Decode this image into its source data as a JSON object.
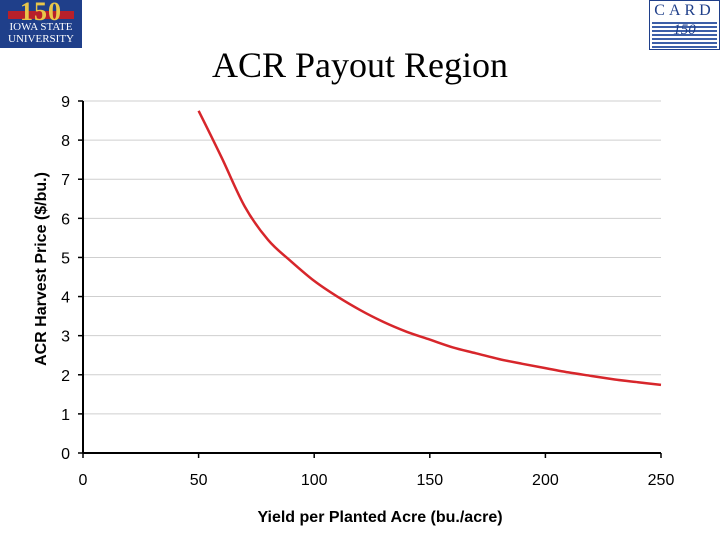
{
  "header": {
    "left_logo": {
      "number": "150",
      "line1": "IOWA STATE",
      "line2": "UNIVERSITY"
    },
    "right_logo": {
      "title": "CARD",
      "number": "150"
    }
  },
  "slide_title": "ACR Payout Region",
  "chart_data": {
    "type": "line",
    "title": "ACR Payout Region",
    "xlabel": "Yield per Planted Acre (bu./acre)",
    "ylabel": "ACR Harvest Price ($/bu.)",
    "xlim": [
      0,
      250
    ],
    "ylim": [
      0,
      9
    ],
    "xticks": [
      0,
      50,
      100,
      150,
      200,
      250
    ],
    "yticks": [
      0,
      1,
      2,
      3,
      4,
      5,
      6,
      7,
      8,
      9
    ],
    "grid": true,
    "line_color": "#d7262b",
    "series": [
      {
        "x": [
          50,
          60,
          70,
          80,
          90,
          100,
          110,
          120,
          130,
          140,
          150,
          160,
          170,
          180,
          190,
          200,
          210,
          220,
          230,
          240,
          250
        ],
        "values": [
          8.75,
          7.55,
          6.3,
          5.45,
          4.9,
          4.4,
          4.0,
          3.65,
          3.35,
          3.1,
          2.9,
          2.7,
          2.55,
          2.4,
          2.28,
          2.17,
          2.06,
          1.97,
          1.88,
          1.81,
          1.74
        ]
      }
    ]
  }
}
